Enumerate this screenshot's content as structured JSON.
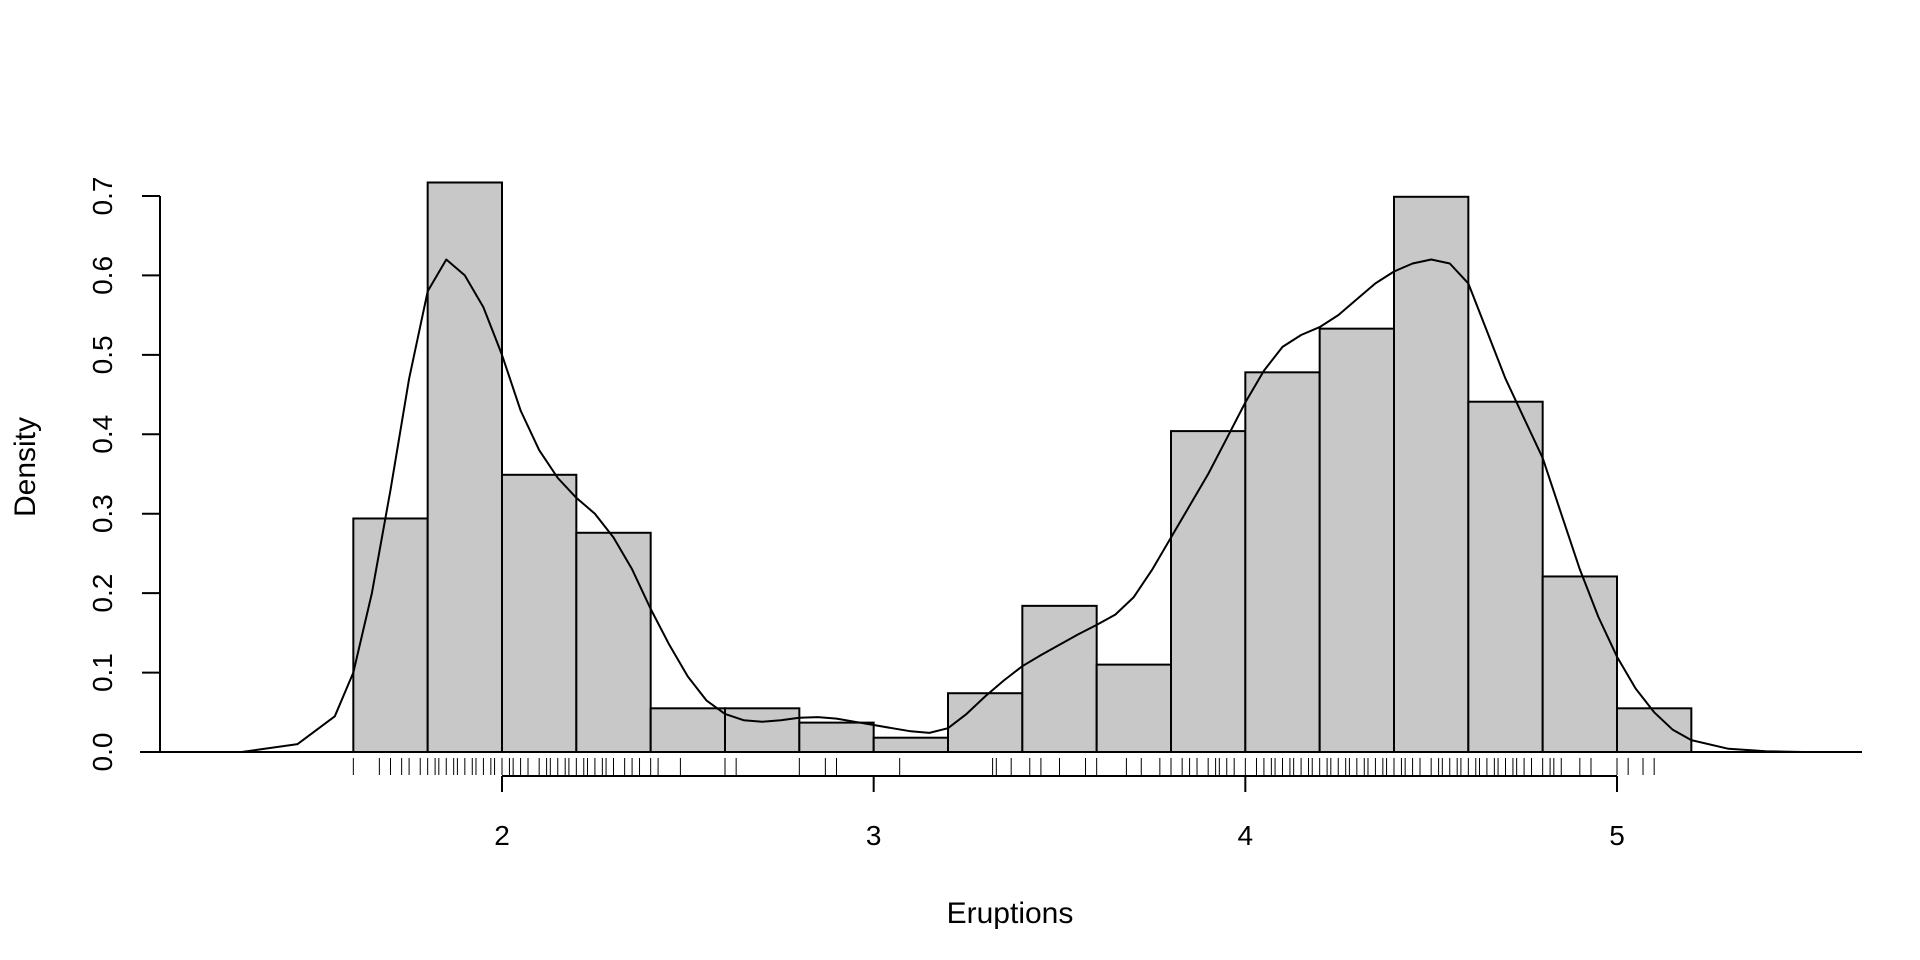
{
  "chart_data": {
    "type": "bar",
    "xlabel": "Eruptions",
    "ylabel": "Density",
    "xlim": [
      1.0,
      5.7
    ],
    "ylim": [
      0.0,
      0.7
    ],
    "x_ticks": [
      "2",
      "3",
      "4",
      "5"
    ],
    "y_ticks": [
      "0.0",
      "0.1",
      "0.2",
      "0.3",
      "0.4",
      "0.5",
      "0.6",
      "0.7"
    ],
    "grid": false,
    "legend": "none",
    "colors": {
      "bar_fill": "#c8c8c8",
      "bar_stroke": "#000000",
      "line": "#000000"
    },
    "bins": [
      {
        "x0": 1.6,
        "x1": 1.8,
        "density": 0.294
      },
      {
        "x0": 1.8,
        "x1": 2.0,
        "density": 0.717
      },
      {
        "x0": 2.0,
        "x1": 2.2,
        "density": 0.349
      },
      {
        "x0": 2.2,
        "x1": 2.4,
        "density": 0.276
      },
      {
        "x0": 2.4,
        "x1": 2.6,
        "density": 0.055
      },
      {
        "x0": 2.6,
        "x1": 2.8,
        "density": 0.055
      },
      {
        "x0": 2.8,
        "x1": 3.0,
        "density": 0.037
      },
      {
        "x0": 3.0,
        "x1": 3.2,
        "density": 0.018
      },
      {
        "x0": 3.2,
        "x1": 3.4,
        "density": 0.074
      },
      {
        "x0": 3.4,
        "x1": 3.6,
        "density": 0.184
      },
      {
        "x0": 3.6,
        "x1": 3.8,
        "density": 0.11
      },
      {
        "x0": 3.8,
        "x1": 4.0,
        "density": 0.404
      },
      {
        "x0": 4.0,
        "x1": 4.2,
        "density": 0.478
      },
      {
        "x0": 4.2,
        "x1": 4.4,
        "density": 0.533
      },
      {
        "x0": 4.4,
        "x1": 4.6,
        "density": 0.699
      },
      {
        "x0": 4.6,
        "x1": 4.8,
        "density": 0.441
      },
      {
        "x0": 4.8,
        "x1": 5.0,
        "density": 0.221
      },
      {
        "x0": 5.0,
        "x1": 5.2,
        "density": 0.055
      }
    ],
    "density_curve": {
      "x": [
        1.05,
        1.3,
        1.45,
        1.55,
        1.6,
        1.65,
        1.7,
        1.75,
        1.8,
        1.85,
        1.9,
        1.95,
        2.0,
        2.05,
        2.1,
        2.15,
        2.2,
        2.25,
        2.3,
        2.35,
        2.4,
        2.45,
        2.5,
        2.55,
        2.6,
        2.65,
        2.7,
        2.75,
        2.8,
        2.85,
        2.9,
        2.95,
        3.0,
        3.05,
        3.1,
        3.15,
        3.2,
        3.25,
        3.3,
        3.35,
        3.4,
        3.45,
        3.5,
        3.55,
        3.6,
        3.65,
        3.7,
        3.75,
        3.8,
        3.85,
        3.9,
        3.95,
        4.0,
        4.05,
        4.1,
        4.15,
        4.2,
        4.25,
        4.3,
        4.35,
        4.4,
        4.45,
        4.5,
        4.55,
        4.6,
        4.65,
        4.7,
        4.75,
        4.8,
        4.85,
        4.9,
        4.95,
        5.0,
        5.05,
        5.1,
        5.15,
        5.2,
        5.3,
        5.4,
        5.5,
        5.65
      ],
      "y": [
        0.0,
        0.0,
        0.01,
        0.045,
        0.1,
        0.2,
        0.33,
        0.47,
        0.58,
        0.62,
        0.6,
        0.56,
        0.5,
        0.43,
        0.38,
        0.345,
        0.32,
        0.3,
        0.27,
        0.23,
        0.18,
        0.135,
        0.095,
        0.065,
        0.048,
        0.04,
        0.038,
        0.04,
        0.043,
        0.044,
        0.042,
        0.038,
        0.034,
        0.03,
        0.026,
        0.024,
        0.03,
        0.048,
        0.07,
        0.09,
        0.108,
        0.122,
        0.135,
        0.148,
        0.16,
        0.173,
        0.195,
        0.23,
        0.27,
        0.31,
        0.35,
        0.395,
        0.44,
        0.48,
        0.51,
        0.525,
        0.535,
        0.55,
        0.57,
        0.59,
        0.605,
        0.615,
        0.62,
        0.615,
        0.59,
        0.53,
        0.47,
        0.42,
        0.37,
        0.3,
        0.23,
        0.17,
        0.12,
        0.08,
        0.05,
        0.028,
        0.015,
        0.004,
        0.001,
        0.0,
        0.0
      ]
    },
    "rug": [
      1.6,
      1.67,
      1.7,
      1.73,
      1.75,
      1.78,
      1.8,
      1.82,
      1.83,
      1.85,
      1.87,
      1.88,
      1.9,
      1.92,
      1.93,
      1.95,
      1.97,
      1.98,
      2.0,
      2.02,
      2.03,
      2.05,
      2.07,
      2.1,
      2.12,
      2.13,
      2.15,
      2.17,
      2.18,
      2.2,
      2.22,
      2.23,
      2.25,
      2.27,
      2.28,
      2.3,
      2.33,
      2.35,
      2.37,
      2.4,
      2.42,
      2.48,
      2.6,
      2.63,
      2.8,
      2.87,
      2.9,
      3.07,
      3.32,
      3.33,
      3.37,
      3.42,
      3.45,
      3.5,
      3.57,
      3.6,
      3.68,
      3.72,
      3.77,
      3.8,
      3.83,
      3.85,
      3.87,
      3.9,
      3.92,
      3.93,
      3.95,
      3.97,
      4.0,
      4.03,
      4.05,
      4.07,
      4.08,
      4.1,
      4.12,
      4.13,
      4.15,
      4.17,
      4.18,
      4.2,
      4.22,
      4.23,
      4.25,
      4.27,
      4.28,
      4.3,
      4.32,
      4.33,
      4.35,
      4.37,
      4.38,
      4.4,
      4.42,
      4.43,
      4.45,
      4.47,
      4.5,
      4.52,
      4.53,
      4.55,
      4.57,
      4.58,
      4.6,
      4.62,
      4.63,
      4.65,
      4.67,
      4.68,
      4.7,
      4.72,
      4.73,
      4.75,
      4.77,
      4.8,
      4.82,
      4.83,
      4.85,
      4.9,
      4.93,
      5.0,
      5.03,
      5.07,
      5.1
    ]
  }
}
